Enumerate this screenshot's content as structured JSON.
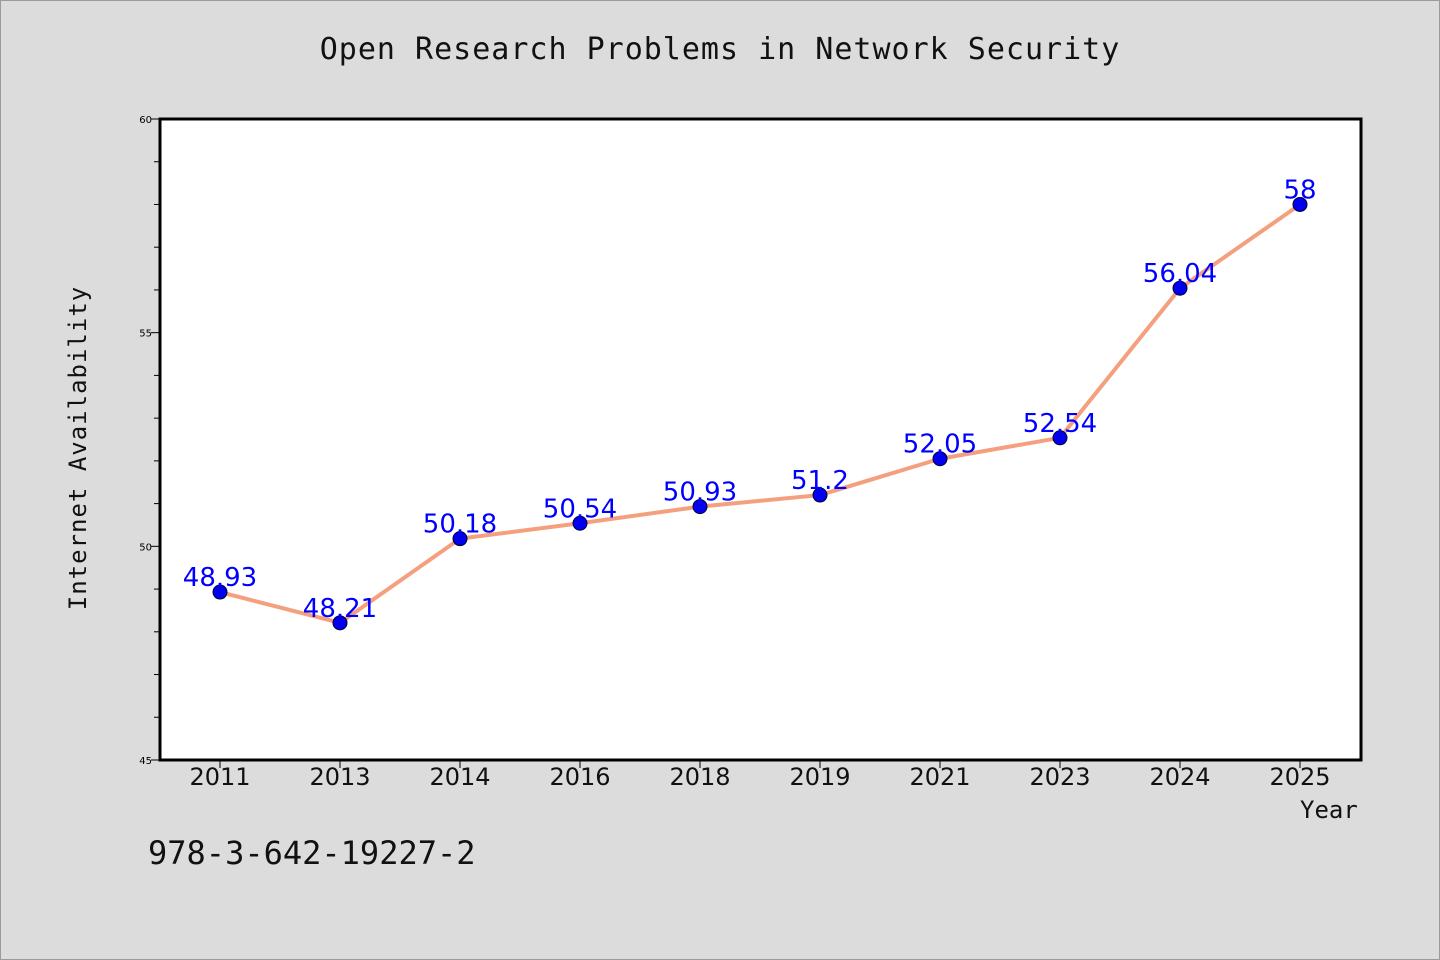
{
  "chart_data": {
    "type": "line",
    "title": "Open Research Problems in Network Security",
    "xlabel": "Year",
    "ylabel": "Internet Availability",
    "categories": [
      "2011",
      "2013",
      "2014",
      "2016",
      "2018",
      "2019",
      "2021",
      "2023",
      "2024",
      "2025"
    ],
    "series": [
      {
        "values": [
          48.93,
          48.21,
          50.18,
          50.54,
          50.93,
          51.2,
          52.05,
          52.54,
          56.04,
          58
        ],
        "data_labels": [
          "48.93",
          "48.21",
          "50.18",
          "50.54",
          "50.93",
          "51.2",
          "52.05",
          "52.54",
          "56.04",
          "58"
        ]
      }
    ],
    "ylim": [
      45,
      60
    ],
    "yticks": [
      45,
      50,
      55,
      60
    ],
    "grid": false,
    "line_color": "#f4a07e",
    "marker_color": "#0000ee",
    "label_color": "#0000ff"
  },
  "footer": {
    "isbn": "978-3-642-19227-2"
  }
}
